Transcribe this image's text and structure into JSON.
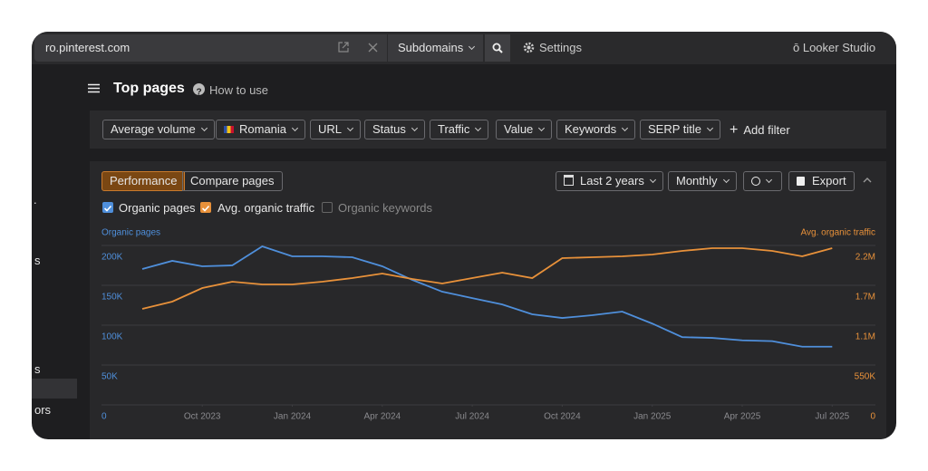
{
  "topbar": {
    "url": "ro.pinterest.com",
    "subdomains": "Subdomains",
    "settings": "Settings",
    "looker": "Looker Studio"
  },
  "header": {
    "title": "Top pages",
    "help": "How to use"
  },
  "filters": {
    "items": [
      "Average volume",
      "Romania",
      "URL",
      "Status",
      "Traffic",
      "Value",
      "Keywords",
      "SERP title"
    ],
    "add": "Add filter"
  },
  "sidebar": {
    "fragments": [
      ".",
      "s",
      "s",
      "ors"
    ]
  },
  "panel": {
    "tabs": [
      "Performance",
      "Compare pages"
    ],
    "period": "Last 2 years",
    "interval": "Monthly",
    "export": "Export",
    "inactive_metric": "Organic keywords"
  },
  "chart_data": {
    "type": "line",
    "y_label": "Organic pages",
    "y2_label": "Avg. organic traffic",
    "x": [
      "2023-08",
      "2023-09",
      "2023-10",
      "2023-11",
      "2023-12",
      "2024-01",
      "2024-02",
      "2024-03",
      "2024-04",
      "2024-05",
      "2024-06",
      "2024-07",
      "2024-08",
      "2024-09",
      "2024-10",
      "2024-11",
      "2024-12",
      "2025-01",
      "2025-02",
      "2025-03",
      "2025-04",
      "2025-05",
      "2025-06",
      "2025-07"
    ],
    "xticks": [
      {
        "value": "2023-10",
        "label": "Oct 2023"
      },
      {
        "value": "2024-01",
        "label": "Jan 2024"
      },
      {
        "value": "2024-04",
        "label": "Apr 2024"
      },
      {
        "value": "2024-07",
        "label": "Jul 2024"
      },
      {
        "value": "2024-10",
        "label": "Oct 2024"
      },
      {
        "value": "2025-01",
        "label": "Jan 2025"
      },
      {
        "value": "2025-04",
        "label": "Apr 2025"
      },
      {
        "value": "2025-07",
        "label": "Jul 2025"
      }
    ],
    "ylim": [
      0,
      200000
    ],
    "yticks": [
      0,
      {
        "value": 50000,
        "label": "50K"
      },
      {
        "value": 100000,
        "label": "100K"
      },
      {
        "value": 150000,
        "label": "150K"
      },
      {
        "value": 200000,
        "label": "200K"
      }
    ],
    "y2lim": [
      0,
      2200000
    ],
    "y2ticks": [
      0,
      {
        "value": 550000,
        "label": "550K"
      },
      {
        "value": 1100000,
        "label": "1.1M"
      },
      {
        "value": 1650000,
        "label": "1.7M"
      },
      {
        "value": 2200000,
        "label": "2.2M"
      }
    ],
    "grid": true,
    "series": [
      {
        "name": "Organic pages",
        "color": "#4f8fdb",
        "values": [
          170500,
          180700,
          173900,
          175000,
          198900,
          186400,
          186400,
          185200,
          173900,
          156800,
          142000,
          134000,
          126000,
          113600,
          109000,
          112500,
          117000,
          102000,
          85000,
          84000,
          81000,
          80000,
          73000,
          73000
        ]
      },
      {
        "name": "Avg. organic traffic",
        "color": "#e8913a",
        "axis": "y2",
        "values": [
          1325000,
          1425000,
          1612500,
          1700000,
          1662500,
          1662500,
          1700000,
          1750000,
          1812500,
          1737500,
          1675000,
          1750000,
          1825000,
          1750000,
          2025000,
          2037500,
          2050000,
          2075000,
          2125000,
          2162500,
          2162500,
          2125000,
          2050000,
          2162500
        ]
      }
    ]
  }
}
